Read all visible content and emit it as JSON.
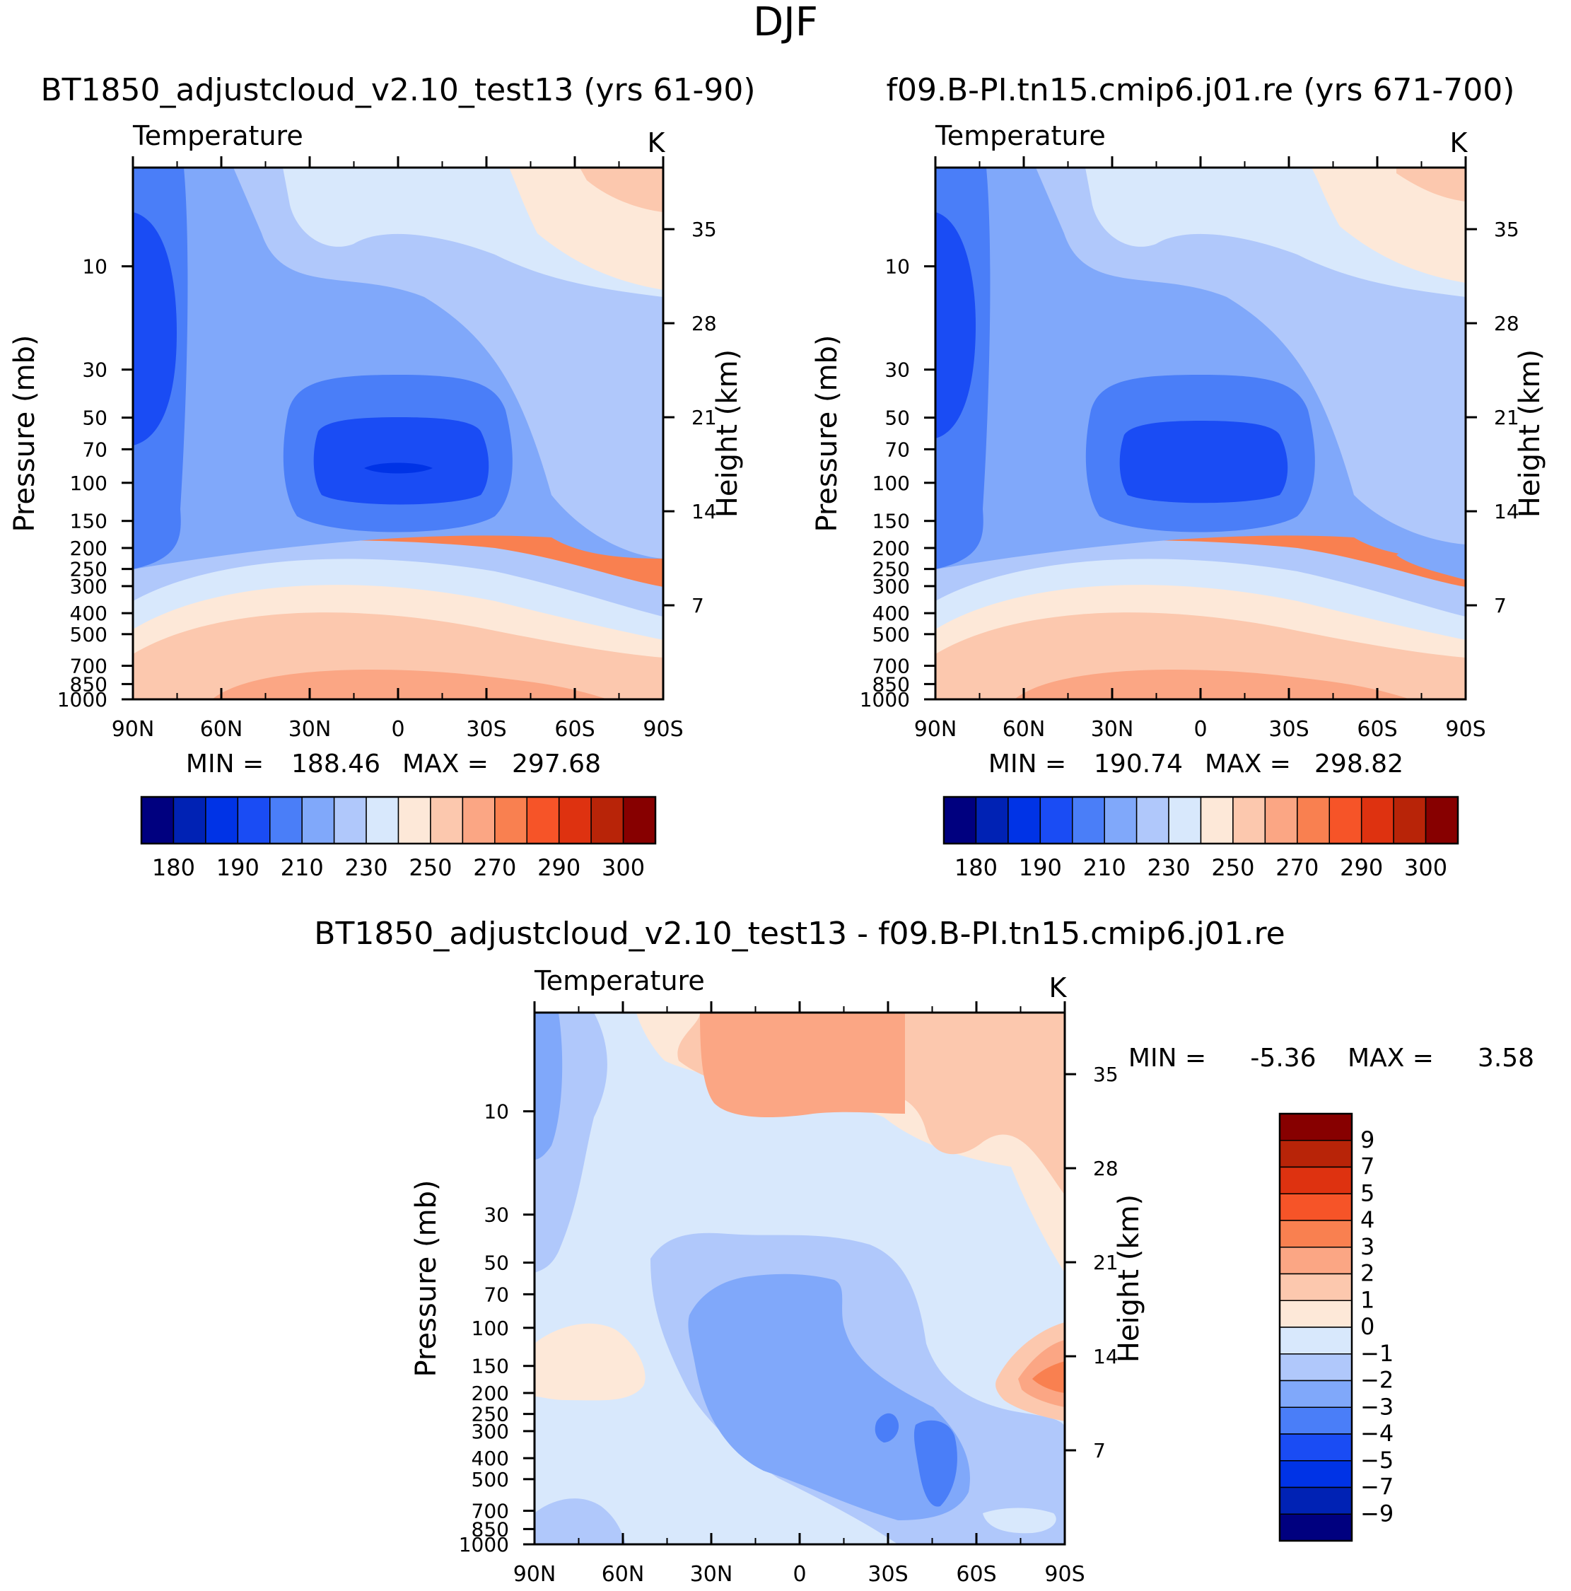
{
  "figure": {
    "season_title": "DJF",
    "var_label": "Temperature",
    "units": "K",
    "pressure_axis_label": "Pressure (mb)",
    "height_axis_label": "Height (km)",
    "min_label": "MIN =",
    "max_label": "MAX ="
  },
  "chart_data": [
    {
      "type": "contour",
      "title": "BT1850_adjustcloud_v2.10_test13 (yrs 61-90)",
      "x_tick_labels": [
        "90N",
        "60N",
        "30N",
        "0",
        "30S",
        "60S",
        "90S"
      ],
      "xlim": [
        90,
        -90
      ],
      "pressure_ticks": [
        10,
        30,
        50,
        70,
        100,
        150,
        200,
        250,
        300,
        400,
        500,
        700,
        850,
        1000
      ],
      "height_ticks_km": [
        7,
        14,
        21,
        28,
        35
      ],
      "ylim_mb": [
        1000,
        3.5
      ],
      "min": "188.46",
      "max": "297.68",
      "levels": [
        180,
        185,
        190,
        200,
        210,
        220,
        230,
        240,
        250,
        260,
        270,
        280,
        290,
        295,
        300
      ],
      "colorbar_labels": [
        "180",
        "190",
        "210",
        "230",
        "250",
        "270",
        "290",
        "300"
      ]
    },
    {
      "type": "contour",
      "title": "f09.B-PI.tn15.cmip6.j01.re (yrs 671-700)",
      "x_tick_labels": [
        "90N",
        "60N",
        "30N",
        "0",
        "30S",
        "60S",
        "90S"
      ],
      "xlim": [
        90,
        -90
      ],
      "pressure_ticks": [
        10,
        30,
        50,
        70,
        100,
        150,
        200,
        250,
        300,
        400,
        500,
        700,
        850,
        1000
      ],
      "height_ticks_km": [
        7,
        14,
        21,
        28,
        35
      ],
      "ylim_mb": [
        1000,
        3.5
      ],
      "min": "190.74",
      "max": "298.82",
      "levels": [
        180,
        185,
        190,
        200,
        210,
        220,
        230,
        240,
        250,
        260,
        270,
        280,
        290,
        295,
        300
      ],
      "colorbar_labels": [
        "180",
        "190",
        "210",
        "230",
        "250",
        "270",
        "290",
        "300"
      ]
    },
    {
      "type": "contour",
      "title": "BT1850_adjustcloud_v2.10_test13 - f09.B-PI.tn15.cmip6.j01.re",
      "x_tick_labels": [
        "90N",
        "60N",
        "30N",
        "0",
        "30S",
        "60S",
        "90S"
      ],
      "xlim": [
        90,
        -90
      ],
      "pressure_ticks": [
        10,
        30,
        50,
        70,
        100,
        150,
        200,
        250,
        300,
        400,
        500,
        700,
        850,
        1000
      ],
      "height_ticks_km": [
        7,
        14,
        21,
        28,
        35
      ],
      "ylim_mb": [
        1000,
        3.5
      ],
      "min": "-5.36",
      "max": "3.58",
      "levels": [
        -9,
        -7,
        -5,
        -4,
        -3,
        -2,
        -1,
        0,
        1,
        2,
        3,
        4,
        5,
        7,
        9
      ],
      "colorbar_labels": [
        "9",
        "7",
        "5",
        "4",
        "3",
        "2",
        "1",
        "0",
        "−1",
        "−2",
        "−3",
        "−4",
        "−5",
        "−7",
        "−9"
      ]
    }
  ],
  "colors": {
    "palette": [
      "#00007f",
      "#0022b4",
      "#0033e6",
      "#1a4cf4",
      "#4a7ef8",
      "#80a8fa",
      "#b0c8fb",
      "#d8e8fc",
      "#fde8d8",
      "#fcc8ae",
      "#fba684",
      "#f98050",
      "#f65428",
      "#de3210",
      "#b82408",
      "#870000"
    ]
  }
}
